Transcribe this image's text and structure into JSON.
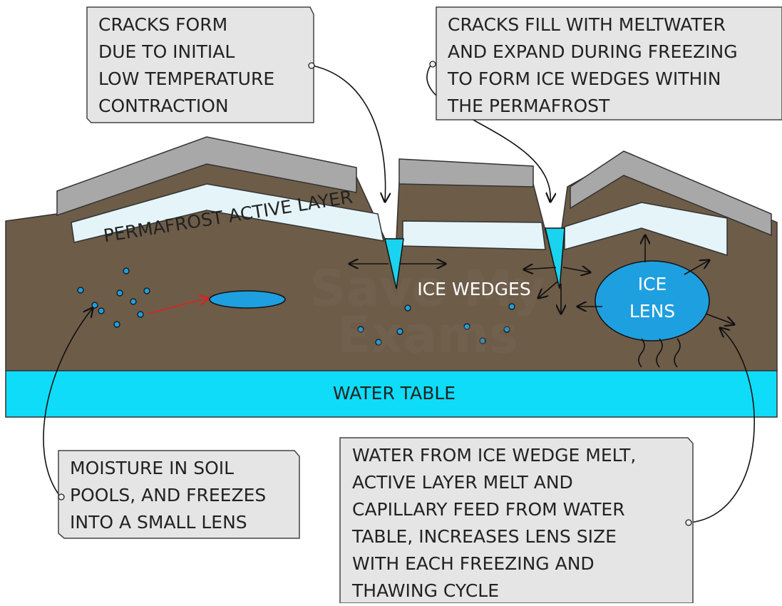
{
  "callouts": [
    {
      "lines": [
        "CRACKS FORM",
        "DUE TO INITIAL",
        "LOW TEMPERATURE",
        "CONTRACTION"
      ]
    },
    {
      "lines": [
        "CRACKS FILL WITH MELTWATER",
        "AND EXPAND DURING FREEZING",
        "TO FORM ICE WEDGES WITHIN",
        "THE PERMAFROST"
      ]
    },
    {
      "lines": [
        "MOISTURE IN SOIL",
        "POOLS, AND FREEZES",
        "INTO A SMALL LENS"
      ]
    },
    {
      "lines": [
        "WATER FROM ICE WEDGE MELT,",
        "ACTIVE LAYER MELT AND",
        "CAPILLARY FEED FROM WATER",
        "TABLE, INCREASES LENS SIZE",
        "WITH EACH FREEZING AND",
        "THAWING CYCLE"
      ]
    }
  ],
  "labels": {
    "active_layer": "PERMAFROST ACTIVE LAYER",
    "ice_wedges": "ICE WEDGES",
    "ice_lens": [
      "ICE",
      "LENS"
    ],
    "water_table": "WATER TABLE"
  },
  "watermark": [
    "Save My",
    "Exams"
  ]
}
